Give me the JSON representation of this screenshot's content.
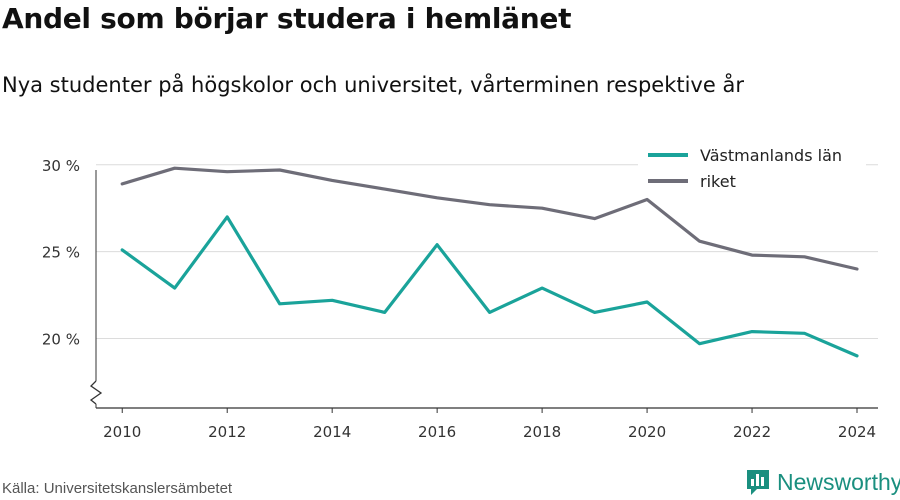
{
  "header": {
    "title": "Andel som börjar studera i hemlänet",
    "subtitle": "Nya studenter på högskolor och universitet, vårterminen respektive år"
  },
  "footer": {
    "source": "Källa: Universitetskanslersämbetet",
    "brand": "Newsworthy",
    "brand_icon": "bar-chart-logo-icon",
    "brand_color": "#1a8f7f"
  },
  "chart_data": {
    "type": "line",
    "x": [
      2010,
      2011,
      2012,
      2013,
      2014,
      2015,
      2016,
      2017,
      2018,
      2019,
      2020,
      2021,
      2022,
      2023,
      2024
    ],
    "series": [
      {
        "name": "Västmanlands län",
        "color": "#1aa39a",
        "values": [
          25.1,
          22.9,
          27.0,
          22.0,
          22.2,
          21.5,
          25.4,
          21.5,
          22.9,
          21.5,
          22.1,
          19.7,
          20.4,
          20.3,
          19.0
        ]
      },
      {
        "name": "riket",
        "color": "#6e6d78",
        "values": [
          28.9,
          29.8,
          29.6,
          29.7,
          29.1,
          28.6,
          28.1,
          27.7,
          27.5,
          26.9,
          28.0,
          25.6,
          24.8,
          24.7,
          24.0
        ]
      }
    ],
    "xticks": [
      2010,
      2012,
      2014,
      2016,
      2018,
      2020,
      2022,
      2024
    ],
    "xtick_labels": [
      "2010",
      "2012",
      "2014",
      "2016",
      "2018",
      "2020",
      "2022",
      "2024"
    ],
    "yticks": [
      20,
      25,
      30
    ],
    "ytick_labels": [
      "20 %",
      "25 %",
      "30 %"
    ],
    "ylim": [
      16,
      32
    ],
    "xlim": [
      2009.5,
      2024.4
    ],
    "y_axis_break": true,
    "grid": "horizontal",
    "legend": "top-right"
  }
}
